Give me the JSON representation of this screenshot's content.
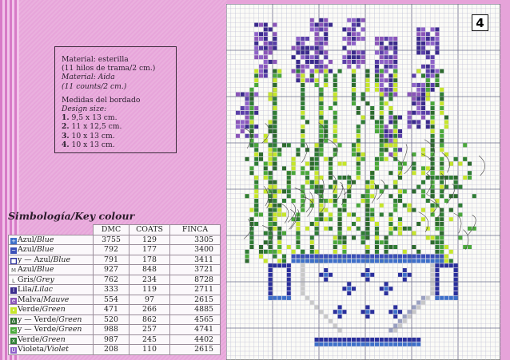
{
  "info": {
    "line1": "Material: esterilla",
    "line2": "(11 hilos de trama/2 cm.)",
    "line3": "Material: Aida",
    "line4": "(11 counts/2 cm.)",
    "line5": "Medidas del bordado",
    "line6": "Design size:",
    "sizes": [
      {
        "n": "1.",
        "v": "9,5 x 13 cm."
      },
      {
        "n": "2.",
        "v": "11 x 12,5 cm."
      },
      {
        "n": "3.",
        "v": "10 x 13 cm."
      },
      {
        "n": "4.",
        "v": "10 x 13 cm."
      }
    ]
  },
  "key": {
    "title": "Simbología/Key colour",
    "headers": [
      "DMC",
      "COATS",
      "FINCA"
    ],
    "rows": [
      {
        "sym": "+",
        "color": "#3d6fc9",
        "es": "Azul/",
        "en": "Blue",
        "prefix": "",
        "dmc": "3755",
        "coats": "129",
        "finca": "3305"
      },
      {
        "sym": "~",
        "color": "#3b4fb8",
        "es": "Azul/",
        "en": "Blue",
        "prefix": "",
        "dmc": "792",
        "coats": "177",
        "finca": "3400"
      },
      {
        "sym": "■",
        "color": "#2a2f9c",
        "es": "Azul/",
        "en": "Blue",
        "prefix": "y — ",
        "dmc": "791",
        "coats": "178",
        "finca": "3411"
      },
      {
        "sym": "M",
        "color": "#ffffff",
        "es": "Azul/",
        "en": "Blue",
        "prefix": "",
        "dmc": "927",
        "coats": "848",
        "finca": "3721"
      },
      {
        "sym": "L",
        "color": "#ffffff",
        "es": "Gris/",
        "en": "Grey",
        "prefix": "",
        "dmc": "762",
        "coats": "234",
        "finca": "8728"
      },
      {
        "sym": "I",
        "color": "#3a2a8c",
        "es": "Lila/",
        "en": "Lilac",
        "prefix": "",
        "dmc": "333",
        "coats": "119",
        "finca": "2711"
      },
      {
        "sym": "e",
        "color": "#8a55b8",
        "es": "Malva/",
        "en": "Mauve",
        "prefix": "",
        "dmc": "554",
        "coats": "97",
        "finca": "2615"
      },
      {
        "sym": "•",
        "color": "#c6e62a",
        "es": "Verde/",
        "en": "Green",
        "prefix": "",
        "dmc": "471",
        "coats": "266",
        "finca": "4885"
      },
      {
        "sym": "Δ",
        "color": "#2d6a2d",
        "es": "Verde/",
        "en": "Green",
        "prefix": "y — ",
        "dmc": "520",
        "coats": "862",
        "finca": "4565"
      },
      {
        "sym": "<",
        "color": "#4aa83a",
        "es": "Verde/",
        "en": "Green",
        "prefix": "y — ",
        "dmc": "988",
        "coats": "257",
        "finca": "4741"
      },
      {
        "sym": "x",
        "color": "#2f7d34",
        "es": "Verde/",
        "en": "Green",
        "prefix": "",
        "dmc": "987",
        "coats": "245",
        "finca": "4402"
      },
      {
        "sym": "U",
        "color": "#8e62c8",
        "es": "Violeta/",
        "en": "Violet",
        "prefix": "",
        "dmc": "208",
        "coats": "110",
        "finca": "2615"
      }
    ]
  },
  "chart": {
    "number": "4"
  }
}
